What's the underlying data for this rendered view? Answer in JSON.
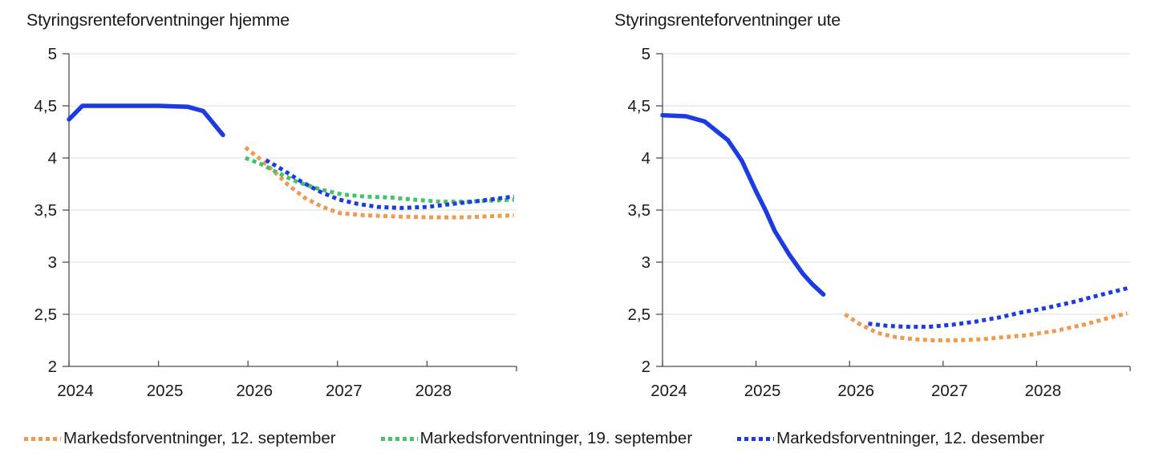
{
  "figure": {
    "background": "#ffffff",
    "text_color": "#1a1a1a",
    "gridline_color": "#dcdcdc",
    "axis_color": "#4d4d4d"
  },
  "legend": [
    {
      "label": "Markedsforventninger, 12. september",
      "color": "#ee9b51",
      "style": "dotted"
    },
    {
      "label": "Markedsforventninger, 19. september",
      "color": "#46c36a",
      "style": "dotted"
    },
    {
      "label": "Markedsforventninger, 12. desember",
      "color": "#1d3be3",
      "style": "dotted"
    }
  ],
  "chart_data": [
    {
      "type": "line",
      "title": "Styringsrenteforventninger hjemme",
      "xlabel": "",
      "ylabel": "",
      "xlim": [
        2024,
        2029
      ],
      "ylim": [
        2,
        5
      ],
      "grid": "horizontal",
      "legend_position": "bottom-shared",
      "x_ticks": [
        {
          "v": 2024,
          "label": "2024"
        },
        {
          "v": 2025,
          "label": "2025"
        },
        {
          "v": 2026,
          "label": "2026"
        },
        {
          "v": 2027,
          "label": "2027"
        },
        {
          "v": 2028,
          "label": "2028"
        }
      ],
      "y_ticks": [
        {
          "v": 5,
          "label": "5"
        },
        {
          "v": 4.5,
          "label": "4,5"
        },
        {
          "v": 4,
          "label": "4"
        },
        {
          "v": 3.5,
          "label": "3,5"
        },
        {
          "v": 3,
          "label": "3"
        },
        {
          "v": 2.5,
          "label": "2,5"
        },
        {
          "v": 2,
          "label": "2"
        }
      ],
      "series": [
        {
          "id": "historikk",
          "legend_label": null,
          "style": "solid",
          "color": "#1d3be3",
          "points": [
            [
              2024.0,
              4.37
            ],
            [
              2024.15,
              4.5
            ],
            [
              2024.6,
              4.5
            ],
            [
              2025.0,
              4.5
            ],
            [
              2025.33,
              4.49
            ],
            [
              2025.5,
              4.45
            ],
            [
              2025.72,
              4.22
            ]
          ]
        },
        {
          "id": "sep12",
          "legend_label": "Markedsforventninger, 12. september",
          "style": "dotted",
          "color": "#ee9b51",
          "points": [
            [
              2025.97,
              4.1
            ],
            [
              2026.12,
              4.0
            ],
            [
              2026.28,
              3.88
            ],
            [
              2026.45,
              3.74
            ],
            [
              2026.63,
              3.62
            ],
            [
              2026.83,
              3.53
            ],
            [
              2027.03,
              3.47
            ],
            [
              2027.3,
              3.45
            ],
            [
              2027.6,
              3.44
            ],
            [
              2028.0,
              3.43
            ],
            [
              2028.4,
              3.43
            ],
            [
              2028.7,
              3.44
            ],
            [
              2028.97,
              3.45
            ]
          ]
        },
        {
          "id": "sep19",
          "legend_label": "Markedsforventninger, 19. september",
          "style": "dotted",
          "color": "#46c36a",
          "points": [
            [
              2025.97,
              4.0
            ],
            [
              2026.15,
              3.94
            ],
            [
              2026.35,
              3.85
            ],
            [
              2026.55,
              3.77
            ],
            [
              2026.8,
              3.7
            ],
            [
              2027.05,
              3.65
            ],
            [
              2027.3,
              3.63
            ],
            [
              2027.6,
              3.62
            ],
            [
              2027.85,
              3.6
            ],
            [
              2028.15,
              3.58
            ],
            [
              2028.45,
              3.58
            ],
            [
              2028.7,
              3.59
            ],
            [
              2028.97,
              3.6
            ]
          ]
        },
        {
          "id": "des12",
          "legend_label": "Markedsforventninger, 12. desember",
          "style": "dotted",
          "color": "#1d3be3",
          "points": [
            [
              2026.2,
              3.98
            ],
            [
              2026.4,
              3.88
            ],
            [
              2026.6,
              3.77
            ],
            [
              2026.82,
              3.67
            ],
            [
              2027.02,
              3.6
            ],
            [
              2027.22,
              3.56
            ],
            [
              2027.45,
              3.53
            ],
            [
              2027.7,
              3.52
            ],
            [
              2028.0,
              3.53
            ],
            [
              2028.3,
              3.56
            ],
            [
              2028.6,
              3.59
            ],
            [
              2028.97,
              3.63
            ]
          ]
        }
      ]
    },
    {
      "type": "line",
      "title": "Styringsrenteforventninger ute",
      "xlabel": "",
      "ylabel": "",
      "xlim": [
        2024,
        2029
      ],
      "ylim": [
        2,
        5
      ],
      "grid": "horizontal",
      "legend_position": "bottom-shared",
      "x_ticks": [
        {
          "v": 2024,
          "label": "2024"
        },
        {
          "v": 2025,
          "label": "2025"
        },
        {
          "v": 2026,
          "label": "2026"
        },
        {
          "v": 2027,
          "label": "2027"
        },
        {
          "v": 2028,
          "label": "2028"
        }
      ],
      "y_ticks": [
        {
          "v": 5,
          "label": "5"
        },
        {
          "v": 4.5,
          "label": "4,5"
        },
        {
          "v": 4,
          "label": "4"
        },
        {
          "v": 3.5,
          "label": "3,5"
        },
        {
          "v": 3,
          "label": "3"
        },
        {
          "v": 2.5,
          "label": "2,5"
        },
        {
          "v": 2,
          "label": "2"
        }
      ],
      "series": [
        {
          "id": "historikk",
          "legend_label": null,
          "style": "solid",
          "color": "#1d3be3",
          "points": [
            [
              2024.0,
              4.41
            ],
            [
              2024.25,
              4.4
            ],
            [
              2024.45,
              4.35
            ],
            [
              2024.7,
              4.17
            ],
            [
              2024.85,
              3.97
            ],
            [
              2025.0,
              3.68
            ],
            [
              2025.1,
              3.5
            ],
            [
              2025.2,
              3.3
            ],
            [
              2025.35,
              3.08
            ],
            [
              2025.5,
              2.89
            ],
            [
              2025.6,
              2.79
            ],
            [
              2025.72,
              2.69
            ]
          ]
        },
        {
          "id": "sep12",
          "legend_label": "Markedsforventninger, 12. september",
          "style": "dotted",
          "color": "#ee9b51",
          "points": [
            [
              2025.95,
              2.5
            ],
            [
              2026.1,
              2.41
            ],
            [
              2026.3,
              2.32
            ],
            [
              2026.5,
              2.28
            ],
            [
              2026.7,
              2.26
            ],
            [
              2026.9,
              2.25
            ],
            [
              2027.15,
              2.25
            ],
            [
              2027.4,
              2.26
            ],
            [
              2027.65,
              2.28
            ],
            [
              2027.9,
              2.3
            ],
            [
              2028.2,
              2.34
            ],
            [
              2028.5,
              2.4
            ],
            [
              2028.75,
              2.46
            ],
            [
              2028.97,
              2.51
            ]
          ]
        },
        {
          "id": "des12",
          "legend_label": "Markedsforventninger, 12. desember",
          "style": "dotted",
          "color": "#1d3be3",
          "points": [
            [
              2026.2,
              2.41
            ],
            [
              2026.4,
              2.39
            ],
            [
              2026.6,
              2.38
            ],
            [
              2026.85,
              2.38
            ],
            [
              2027.1,
              2.4
            ],
            [
              2027.35,
              2.43
            ],
            [
              2027.6,
              2.47
            ],
            [
              2027.85,
              2.52
            ],
            [
              2028.1,
              2.56
            ],
            [
              2028.4,
              2.62
            ],
            [
              2028.7,
              2.69
            ],
            [
              2028.97,
              2.75
            ]
          ]
        }
      ]
    }
  ]
}
